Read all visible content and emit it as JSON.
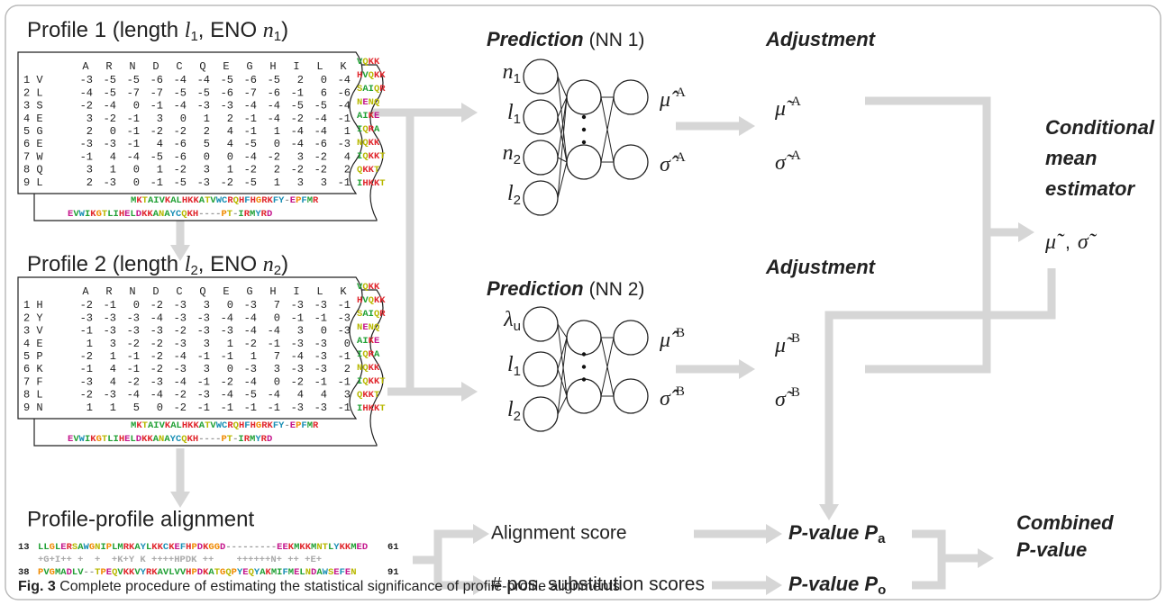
{
  "profile1": {
    "title": [
      "Profile 1 (length ",
      "l",
      "1",
      ", ENO ",
      "n",
      "1",
      ")"
    ],
    "columns": [
      "A",
      "R",
      "N",
      "D",
      "C",
      "Q",
      "E",
      "G",
      "H",
      "I",
      "L",
      "K"
    ],
    "rows": [
      {
        "label": "1 V",
        "values": [
          -3,
          -5,
          -5,
          -6,
          -4,
          -4,
          -5,
          -6,
          -5,
          2,
          0,
          -4
        ]
      },
      {
        "label": "2 L",
        "values": [
          -4,
          -5,
          -7,
          -7,
          -5,
          -5,
          -6,
          -7,
          -6,
          -1,
          6,
          -6
        ]
      },
      {
        "label": "3 S",
        "values": [
          -2,
          -4,
          0,
          -1,
          -4,
          -3,
          -3,
          -4,
          -4,
          -5,
          -5,
          -4
        ]
      },
      {
        "label": "4 E",
        "values": [
          3,
          -2,
          -1,
          3,
          0,
          1,
          2,
          -1,
          -4,
          -2,
          -4,
          -1
        ]
      },
      {
        "label": "5 G",
        "values": [
          2,
          0,
          -1,
          -2,
          -2,
          2,
          4,
          -1,
          1,
          -4,
          -4,
          1
        ]
      },
      {
        "label": "6 E",
        "values": [
          -3,
          -3,
          -1,
          4,
          -6,
          5,
          4,
          -5,
          0,
          -4,
          -6,
          -3
        ]
      },
      {
        "label": "7 W",
        "values": [
          -1,
          4,
          -4,
          -5,
          -6,
          0,
          0,
          -4,
          -2,
          3,
          -2,
          4
        ]
      },
      {
        "label": "8 Q",
        "values": [
          3,
          1,
          0,
          1,
          -2,
          3,
          1,
          -2,
          2,
          -2,
          -2,
          2
        ]
      },
      {
        "label": "9 L",
        "values": [
          2,
          -3,
          0,
          -1,
          -5,
          -3,
          -2,
          -5,
          1,
          3,
          3,
          -1
        ]
      }
    ],
    "side": [
      "VQKK",
      "HVQKK",
      "SAIQR",
      "NENQ",
      "AIKE",
      "IQRA",
      "NQKK",
      "IQKKT",
      "QKKT",
      "IHKKT"
    ],
    "strips": [
      "MKTAIVKALHKKATVWCRQHFHGRKFY-EPFMR",
      "EVWIKGTLIHELDKKANAYCQKH----PT-IRMYRD"
    ]
  },
  "profile2": {
    "title": [
      "Profile 2 (length ",
      "l",
      "2",
      ", ENO ",
      "n",
      "2",
      ")"
    ],
    "columns": [
      "A",
      "R",
      "N",
      "D",
      "C",
      "Q",
      "E",
      "G",
      "H",
      "I",
      "L",
      "K"
    ],
    "rows": [
      {
        "label": "1 H",
        "values": [
          -2,
          -1,
          0,
          -2,
          -3,
          3,
          0,
          -3,
          7,
          -3,
          -3,
          -1
        ]
      },
      {
        "label": "2 Y",
        "values": [
          -3,
          -3,
          -3,
          -4,
          -3,
          -3,
          -4,
          -4,
          0,
          -1,
          -1,
          -3
        ]
      },
      {
        "label": "3 V",
        "values": [
          -1,
          -3,
          -3,
          -3,
          -2,
          -3,
          -3,
          -4,
          -4,
          3,
          0,
          -3
        ]
      },
      {
        "label": "4 E",
        "values": [
          1,
          3,
          -2,
          -2,
          -3,
          3,
          1,
          -2,
          -1,
          -3,
          -3,
          0
        ]
      },
      {
        "label": "5 P",
        "values": [
          -2,
          1,
          -1,
          -2,
          -4,
          -1,
          -1,
          1,
          7,
          -4,
          -3,
          -1
        ]
      },
      {
        "label": "6 K",
        "values": [
          -1,
          4,
          -1,
          -2,
          -3,
          3,
          0,
          -3,
          3,
          -3,
          -3,
          2
        ]
      },
      {
        "label": "7 F",
        "values": [
          -3,
          4,
          -2,
          -3,
          -4,
          -1,
          -2,
          -4,
          0,
          -2,
          -1,
          -1
        ]
      },
      {
        "label": "8 L",
        "values": [
          -2,
          -3,
          -4,
          -4,
          -2,
          -3,
          -4,
          -5,
          -4,
          4,
          4,
          3
        ]
      },
      {
        "label": "9 N",
        "values": [
          1,
          1,
          5,
          0,
          -2,
          -1,
          -1,
          -1,
          -1,
          -3,
          -3,
          -1
        ]
      }
    ],
    "side": [
      "VQKK",
      "HVQKK",
      "SAIQR",
      "NENQ",
      "AIKE",
      "IQRA",
      "NQKK",
      "IQKKT",
      "QKKT",
      "IHKKT"
    ],
    "strips": [
      "MKTAIVKALHKKATVWCRQHFHGRKFY-EPFMR",
      "EVWIKGTLIHELDKKANAYCQKH----PT-IRMYRD"
    ]
  },
  "alignment": {
    "title": "Profile-profile alignment",
    "top": {
      "start": "13",
      "seq": "LLGLERSAWGNIPLMRKAYLKKCKEFHPDKGGD---------EEKMKKMNTLYKKMED",
      "end": "61"
    },
    "match": "+G+I++ +  +  +K+Y K ++++HPDK ++    ++++++N+ ++ +E+",
    "bottom": {
      "start": "38",
      "seq": "PVGMADLV--TPEQVKKVYRKAVLVVHPDKATGQPYEQYAKMIFMELNDAWSEFEN",
      "end": "91"
    }
  },
  "nn1": {
    "title": "Prediction",
    "tag": "(NN 1)",
    "inputs": [
      [
        "n",
        "1"
      ],
      [
        "l",
        "1"
      ],
      [
        "n",
        "2"
      ],
      [
        "l",
        "2"
      ]
    ],
    "outputs": [
      [
        "μ̂̂",
        "A"
      ],
      [
        "σ̂̂",
        "A"
      ]
    ]
  },
  "nn2": {
    "title": "Prediction",
    "tag": "(NN 2)",
    "inputs": [
      [
        "λ",
        "u"
      ],
      [
        "l",
        "1"
      ],
      [
        "l",
        "2"
      ]
    ],
    "outputs": [
      [
        "μ̂̂",
        "B"
      ],
      [
        "σ̂̂",
        "B"
      ]
    ]
  },
  "adjust1": {
    "title": "Adjustment",
    "outputs": [
      [
        "μ̃",
        "A"
      ],
      [
        "σ̃",
        "A"
      ]
    ]
  },
  "adjust2": {
    "title": "Adjustment",
    "outputs": [
      [
        "μ̃",
        "B"
      ],
      [
        "σ̃",
        "B"
      ]
    ]
  },
  "estimator": {
    "title": [
      "Conditional",
      "mean",
      "estimator"
    ],
    "result": [
      "μ̃",
      ",",
      "σ̃"
    ]
  },
  "scores": {
    "alignment": "Alignment score",
    "substitution": "# pos. substitution scores"
  },
  "pvalues": {
    "a": [
      "P-value ",
      "P",
      "a"
    ],
    "o": [
      "P-value ",
      "P",
      "o"
    ]
  },
  "combined": [
    "Combined",
    "P-value"
  ],
  "caption": {
    "label": "Fig. 3",
    "text": " Complete procedure of estimating the statistical significance of profile-profile alignments"
  }
}
